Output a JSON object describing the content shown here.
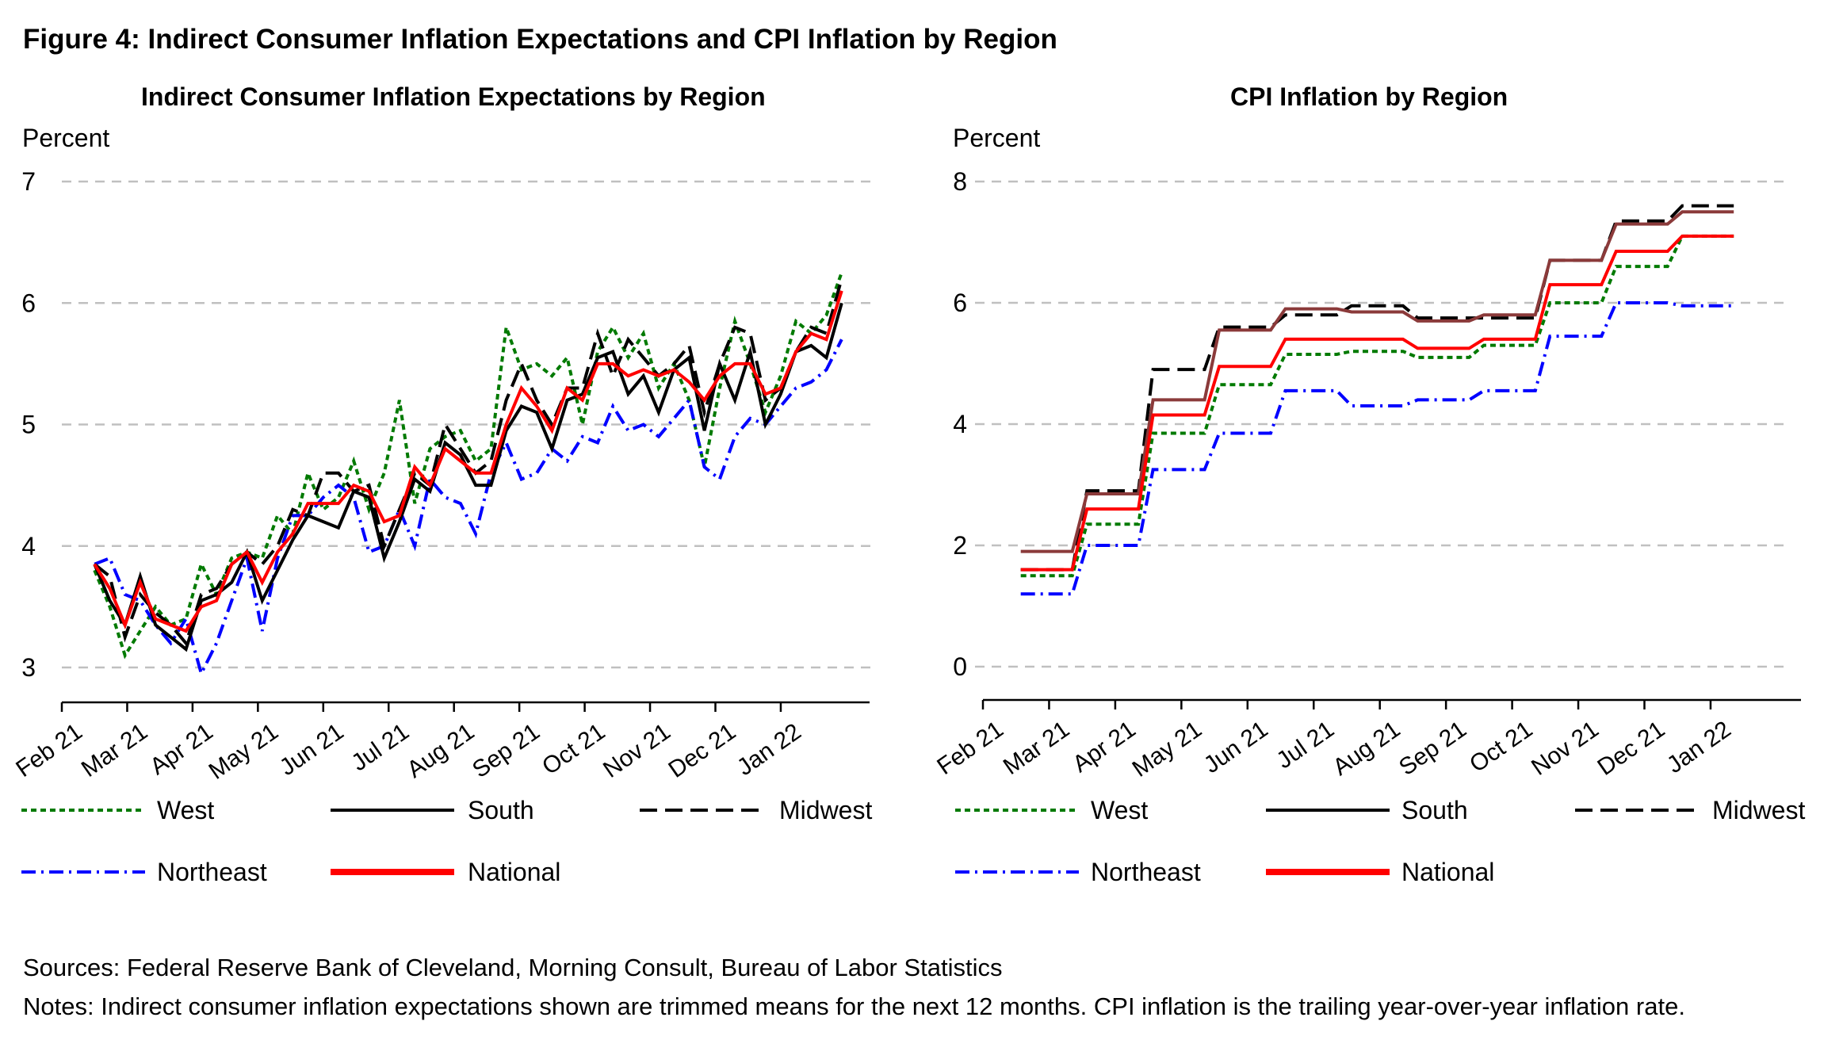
{
  "figure_title": "Figure 4: Indirect Consumer Inflation Expectations and CPI Inflation by Region",
  "sources": "Sources: Federal Reserve Bank of Cleveland, Morning Consult, Bureau of Labor Statistics",
  "notes": "Notes: Indirect consumer inflation expectations shown are trimmed means for the next 12 months. CPI inflation is the trailing year-over-year inflation rate.",
  "series_styles": [
    {
      "name": "West",
      "color": "#007a00",
      "dash": "dotted"
    },
    {
      "name": "South",
      "color": "#000000",
      "dash": "solid",
      "cpi_color": "#8b3a3a"
    },
    {
      "name": "Midwest",
      "color": "#000000",
      "dash": "long-dash"
    },
    {
      "name": "Northeast",
      "color": "#0000ff",
      "dash": "dash-dot"
    },
    {
      "name": "National",
      "color": "#ff0000",
      "dash": "solid-thick"
    }
  ],
  "chart_data": [
    {
      "type": "line",
      "title": "Indirect Consumer Inflation Expectations by Region",
      "ylabel": "Percent",
      "xlabel": "",
      "ylim": [
        3,
        7
      ],
      "yticks": [
        "3",
        "4",
        "5",
        "6",
        "7"
      ],
      "grid": true,
      "legend": "bottom",
      "x_tick_labels": [
        "Feb 21",
        "Mar 21",
        "Apr 21",
        "May 21",
        "Jun 21",
        "Jul 21",
        "Aug 21",
        "Sep 21",
        "Oct 21",
        "Nov 21",
        "Dec 21",
        "Jan 22"
      ],
      "x_frequency": "weekly",
      "x_start_month_offset": 0.5,
      "x_step_months": 0.2333,
      "series": [
        {
          "name": "West",
          "values": [
            3.8,
            3.5,
            3.1,
            3.3,
            3.5,
            3.35,
            3.4,
            3.85,
            3.6,
            3.9,
            3.95,
            3.9,
            4.25,
            4.1,
            4.6,
            4.3,
            4.4,
            4.7,
            4.3,
            4.6,
            5.2,
            4.35,
            4.8,
            4.9,
            4.95,
            4.7,
            4.8,
            5.8,
            5.45,
            5.5,
            5.4,
            5.55,
            5.0,
            5.6,
            5.8,
            5.55,
            5.75,
            5.3,
            5.5,
            5.2,
            4.65,
            5.3,
            5.85,
            5.5,
            5.1,
            5.4,
            5.85,
            5.75,
            5.9,
            6.25
          ]
        },
        {
          "name": "South",
          "values": [
            3.85,
            3.55,
            3.35,
            3.75,
            3.35,
            3.25,
            3.15,
            3.55,
            3.6,
            3.7,
            3.95,
            3.55,
            3.8,
            4.05,
            4.25,
            4.2,
            4.15,
            4.45,
            4.4,
            3.9,
            4.2,
            4.55,
            4.45,
            4.85,
            4.75,
            4.5,
            4.5,
            4.95,
            5.15,
            5.1,
            4.8,
            5.2,
            5.25,
            5.55,
            5.6,
            5.25,
            5.4,
            5.1,
            5.45,
            5.55,
            4.95,
            5.5,
            5.2,
            5.6,
            5.0,
            5.25,
            5.6,
            5.65,
            5.55,
            6.0
          ]
        },
        {
          "name": "Midwest",
          "values": [
            3.85,
            3.75,
            3.25,
            3.6,
            3.45,
            3.35,
            3.2,
            3.6,
            3.65,
            3.85,
            3.95,
            3.85,
            4.0,
            4.3,
            4.25,
            4.6,
            4.6,
            4.45,
            4.5,
            4.0,
            4.3,
            4.6,
            4.5,
            5.0,
            4.8,
            4.6,
            4.7,
            5.2,
            5.5,
            5.2,
            5.0,
            5.3,
            5.3,
            5.75,
            5.4,
            5.7,
            5.55,
            5.4,
            5.5,
            5.65,
            5.1,
            5.5,
            5.8,
            5.75,
            5.2,
            5.3,
            5.6,
            5.8,
            5.75,
            6.2
          ]
        },
        {
          "name": "Northeast",
          "values": [
            3.85,
            3.9,
            3.6,
            3.55,
            3.35,
            3.2,
            3.4,
            2.95,
            3.2,
            3.55,
            3.9,
            3.3,
            3.9,
            4.25,
            4.25,
            4.4,
            4.5,
            4.4,
            3.95,
            4.0,
            4.3,
            4.0,
            4.55,
            4.4,
            4.35,
            4.1,
            4.6,
            4.85,
            4.55,
            4.6,
            4.8,
            4.7,
            4.9,
            4.85,
            5.15,
            4.95,
            5.0,
            4.9,
            5.05,
            5.2,
            4.65,
            4.55,
            4.9,
            5.05,
            5.0,
            5.15,
            5.3,
            5.35,
            5.45,
            5.7
          ]
        },
        {
          "name": "National",
          "values": [
            3.85,
            3.65,
            3.35,
            3.7,
            3.4,
            3.35,
            3.3,
            3.5,
            3.55,
            3.85,
            3.95,
            3.7,
            3.95,
            4.1,
            4.35,
            4.35,
            4.35,
            4.5,
            4.45,
            4.2,
            4.25,
            4.65,
            4.5,
            4.8,
            4.7,
            4.6,
            4.6,
            5.0,
            5.3,
            5.15,
            4.95,
            5.3,
            5.2,
            5.5,
            5.5,
            5.4,
            5.45,
            5.4,
            5.45,
            5.35,
            5.2,
            5.4,
            5.5,
            5.5,
            5.25,
            5.3,
            5.6,
            5.75,
            5.7,
            6.1
          ]
        }
      ]
    },
    {
      "type": "line",
      "title": "CPI Inflation by Region",
      "ylabel": "Percent",
      "xlabel": "",
      "ylim": [
        0,
        8
      ],
      "yticks": [
        "0",
        "2",
        "4",
        "6",
        "8"
      ],
      "grid": true,
      "legend": "bottom",
      "x_tick_labels": [
        "Feb 21",
        "Mar 21",
        "Apr 21",
        "May 21",
        "Jun 21",
        "Jul 21",
        "Aug 21",
        "Sep 21",
        "Oct 21",
        "Nov 21",
        "Dec 21",
        "Jan 22"
      ],
      "x_frequency": "monthly",
      "x_start_month_offset": 0.5,
      "series": [
        {
          "name": "West",
          "values": [
            1.5,
            2.35,
            3.85,
            4.65,
            5.15,
            5.2,
            5.1,
            5.3,
            6.0,
            6.6,
            7.1
          ]
        },
        {
          "name": "South",
          "values": [
            1.9,
            2.85,
            4.4,
            5.55,
            5.9,
            5.85,
            5.7,
            5.8,
            6.7,
            7.3,
            7.5
          ]
        },
        {
          "name": "Midwest",
          "values": [
            1.6,
            2.9,
            4.9,
            5.6,
            5.8,
            5.95,
            5.75,
            5.75,
            6.7,
            7.35,
            7.6
          ]
        },
        {
          "name": "Northeast",
          "values": [
            1.2,
            2.0,
            3.25,
            3.85,
            4.55,
            4.3,
            4.4,
            4.55,
            5.45,
            6.0,
            5.95
          ]
        },
        {
          "name": "National",
          "values": [
            1.6,
            2.6,
            4.15,
            4.95,
            5.4,
            5.4,
            5.25,
            5.4,
            6.3,
            6.85,
            7.1
          ]
        }
      ]
    }
  ]
}
